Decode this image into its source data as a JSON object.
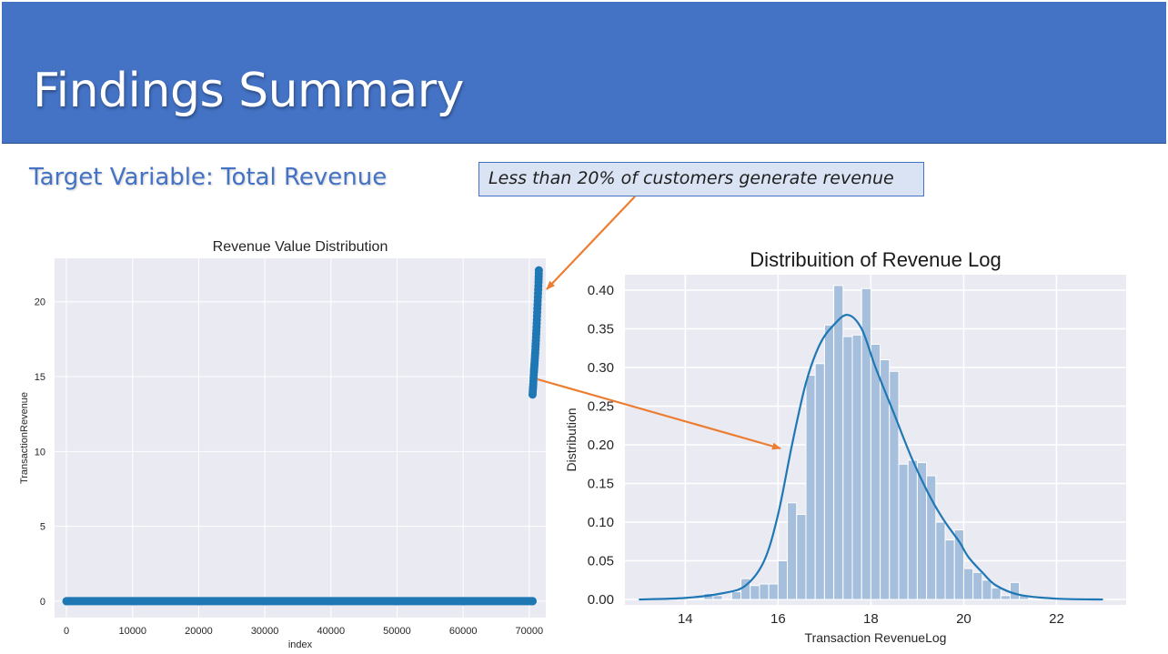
{
  "slide": {
    "title": "Findings Summary",
    "subtitle": "Target Variable: Total Revenue",
    "callout": "Less than 20% of customers generate revenue"
  },
  "colors": {
    "title_bar": "#4472c4",
    "callout_fill": "#dae3f3",
    "arrow": "#ed7d31",
    "plot_bg": "#eaeaf2",
    "series": "#1f77b4",
    "hist_bar": "#a6bfdc"
  },
  "chart_data": [
    {
      "type": "scatter",
      "title": "Revenue Value Distribution",
      "xlabel": "index",
      "ylabel": "TransactionRevenue",
      "xlim": [
        -1800,
        72500
      ],
      "ylim": [
        -1.1,
        22.9
      ],
      "xticks": [
        0,
        10000,
        20000,
        30000,
        40000,
        50000,
        60000,
        70000
      ],
      "yticks": [
        0,
        5,
        10,
        15,
        20
      ],
      "grid": true,
      "series": [
        {
          "points": [
            [
              0,
              0
            ],
            [
              10000,
              0
            ],
            [
              20000,
              0
            ],
            [
              30000,
              0
            ],
            [
              40000,
              0
            ],
            [
              50000,
              0
            ],
            [
              60000,
              0
            ],
            [
              70500,
              0
            ]
          ]
        },
        {
          "points": [
            [
              70500,
              13.8
            ],
            [
              70600,
              14.5
            ],
            [
              70700,
              15.3
            ],
            [
              70800,
              15.9
            ],
            [
              70900,
              16.6
            ],
            [
              71000,
              17.4
            ],
            [
              71100,
              18.3
            ],
            [
              71200,
              19.3
            ],
            [
              71300,
              20.3
            ],
            [
              71400,
              21.3
            ],
            [
              71450,
              22.1
            ]
          ]
        }
      ]
    },
    {
      "type": "bar",
      "title": "Distribuition of Revenue Log",
      "xlabel": "Transaction RevenueLog",
      "ylabel": "Distribution",
      "xlim": [
        12.7,
        23.5
      ],
      "ylim": [
        -0.007,
        0.42
      ],
      "xticks": [
        14,
        16,
        18,
        20,
        22
      ],
      "yticks": [
        0.0,
        0.05,
        0.1,
        0.15,
        0.2,
        0.25,
        0.3,
        0.35,
        0.4
      ],
      "grid": true,
      "bin_width": 0.2,
      "bins": [
        [
          14.4,
          0.008
        ],
        [
          14.6,
          0.005
        ],
        [
          15.0,
          0.01
        ],
        [
          15.2,
          0.027
        ],
        [
          15.4,
          0.018
        ],
        [
          15.6,
          0.02
        ],
        [
          15.8,
          0.02
        ],
        [
          16.0,
          0.05
        ],
        [
          16.2,
          0.125
        ],
        [
          16.4,
          0.11
        ],
        [
          16.6,
          0.29
        ],
        [
          16.8,
          0.305
        ],
        [
          17.0,
          0.355
        ],
        [
          17.2,
          0.406
        ],
        [
          17.4,
          0.34
        ],
        [
          17.6,
          0.342
        ],
        [
          17.8,
          0.402
        ],
        [
          18.0,
          0.33
        ],
        [
          18.2,
          0.31
        ],
        [
          18.4,
          0.295
        ],
        [
          18.6,
          0.175
        ],
        [
          18.8,
          0.18
        ],
        [
          19.0,
          0.177
        ],
        [
          19.2,
          0.16
        ],
        [
          19.4,
          0.1
        ],
        [
          19.6,
          0.077
        ],
        [
          19.8,
          0.09
        ],
        [
          20.0,
          0.04
        ],
        [
          20.2,
          0.035
        ],
        [
          20.4,
          0.025
        ],
        [
          20.6,
          0.015
        ],
        [
          20.8,
          0.005
        ],
        [
          21.0,
          0.022
        ],
        [
          21.2,
          0.005
        ]
      ],
      "kde": [
        [
          13.0,
          0.0
        ],
        [
          14.0,
          0.002
        ],
        [
          14.8,
          0.008
        ],
        [
          15.3,
          0.018
        ],
        [
          15.7,
          0.05
        ],
        [
          16.0,
          0.11
        ],
        [
          16.3,
          0.2
        ],
        [
          16.6,
          0.28
        ],
        [
          16.9,
          0.33
        ],
        [
          17.2,
          0.355
        ],
        [
          17.5,
          0.368
        ],
        [
          17.8,
          0.35
        ],
        [
          18.1,
          0.3
        ],
        [
          18.5,
          0.24
        ],
        [
          18.9,
          0.18
        ],
        [
          19.3,
          0.13
        ],
        [
          19.6,
          0.1
        ],
        [
          19.9,
          0.075
        ],
        [
          20.1,
          0.055
        ],
        [
          20.4,
          0.035
        ],
        [
          20.7,
          0.018
        ],
        [
          21.2,
          0.006
        ],
        [
          22.0,
          0.001
        ],
        [
          23.0,
          0.0
        ]
      ]
    }
  ]
}
